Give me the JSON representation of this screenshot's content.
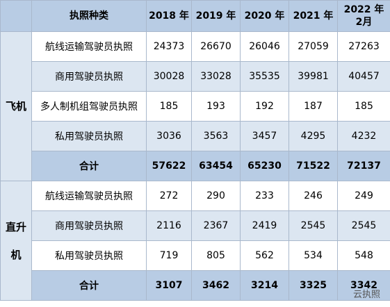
{
  "header": {
    "title": "执照种类",
    "columns": [
      "2018 年",
      "2019 年",
      "2020 年",
      "2021 年",
      "2022 年\n2月"
    ]
  },
  "groups": [
    {
      "label": "飞机",
      "rows": [
        {
          "label": "航线运输驾驶员执照",
          "values": [
            24373,
            26670,
            26046,
            27059,
            27263
          ]
        },
        {
          "label": "商用驾驶员执照",
          "values": [
            30028,
            33028,
            35535,
            39981,
            40457
          ]
        },
        {
          "label": "多人制机组驾驶员执照",
          "values": [
            185,
            193,
            192,
            187,
            185
          ]
        },
        {
          "label": "私用驾驶员执照",
          "values": [
            3036,
            3563,
            3457,
            4295,
            4232
          ]
        }
      ],
      "total": {
        "label": "合计",
        "values": [
          57622,
          63454,
          65230,
          71522,
          72137
        ]
      }
    },
    {
      "label": "直升机",
      "rows": [
        {
          "label": "航线运输驾驶员执照",
          "values": [
            272,
            290,
            233,
            246,
            249
          ]
        },
        {
          "label": "商用驾驶员执照",
          "values": [
            2116,
            2367,
            2419,
            2545,
            2545
          ]
        },
        {
          "label": "私用驾驶员执照",
          "values": [
            719,
            805,
            562,
            534,
            548
          ]
        }
      ],
      "total": {
        "label": "合计",
        "values": [
          3107,
          3462,
          3214,
          3325,
          3342
        ]
      }
    }
  ],
  "watermark": "云执照"
}
